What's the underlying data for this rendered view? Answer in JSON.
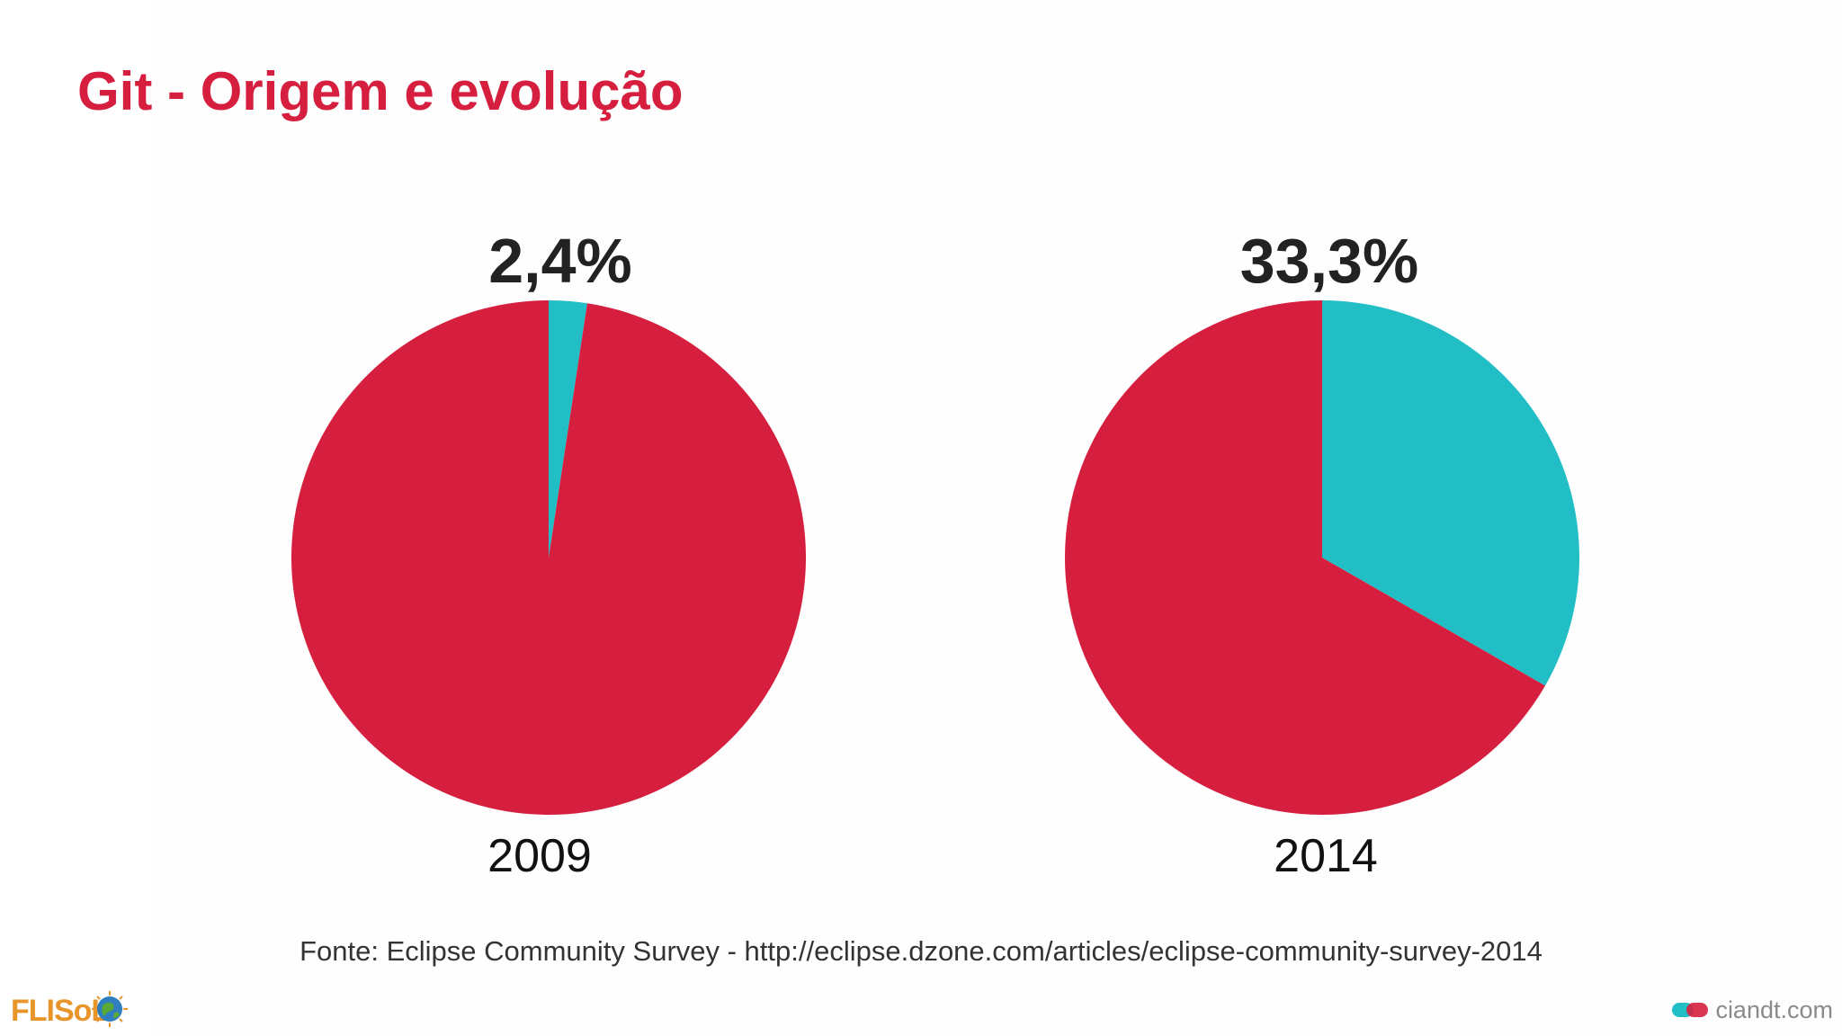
{
  "slide": {
    "title": "Git - Origem e evolução",
    "source": "Fonte: Eclipse Community Survey - http://eclipse.dzone.com/articles/eclipse-community-survey-2014"
  },
  "colors": {
    "title": "#d61f3e",
    "git_slice": "#21bec6",
    "other_slice": "#d61f3e"
  },
  "logos": {
    "left_text": "FLISoL",
    "right_text": "ciandt.com"
  },
  "chart_data": [
    {
      "type": "pie",
      "title": "2,4%",
      "xlabel": "2009",
      "slices": [
        {
          "value": 2.4,
          "color": "#21bec6"
        },
        {
          "value": 97.6,
          "color": "#d61f3e"
        }
      ]
    },
    {
      "type": "pie",
      "title": "33,3%",
      "xlabel": "2014",
      "slices": [
        {
          "value": 33.3,
          "color": "#21bec6"
        },
        {
          "value": 66.7,
          "color": "#d61f3e"
        }
      ]
    }
  ]
}
